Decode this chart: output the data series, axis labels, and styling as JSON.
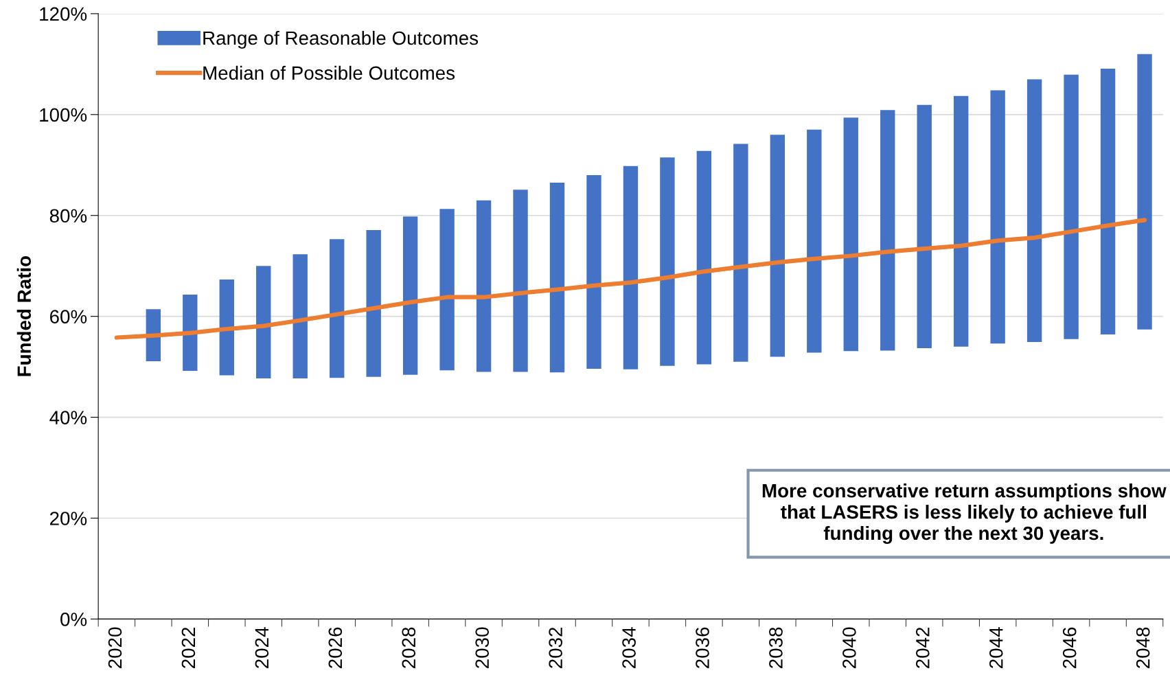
{
  "chart_data": {
    "type": "bar",
    "ylabel": "Funded Ratio",
    "categories": [
      "2020",
      null,
      "2022",
      null,
      "2024",
      null,
      "2026",
      null,
      "2028",
      null,
      "2030",
      null,
      "2032",
      null,
      "2034",
      null,
      "2036",
      null,
      "2038",
      null,
      "2040",
      null,
      "2042",
      null,
      "2044",
      null,
      "2046",
      null,
      "2048"
    ],
    "series": [
      {
        "name": "Range of Reasonable Outcomes",
        "type": "bar",
        "color": "#4472c4",
        "base": [
          null,
          51.1,
          49.2,
          48.3,
          47.7,
          47.7,
          47.8,
          48.0,
          48.4,
          49.3,
          49.0,
          49.0,
          48.9,
          49.6,
          49.5,
          50.2,
          50.5,
          51.0,
          52.0,
          52.8,
          53.1,
          53.2,
          53.7,
          54.0,
          54.6,
          54.9,
          55.5,
          56.4,
          57.4
        ],
        "values": [
          null,
          10.3,
          15.1,
          19.0,
          22.3,
          24.6,
          27.5,
          29.1,
          31.4,
          32.0,
          34.0,
          36.1,
          37.6,
          38.4,
          40.3,
          41.3,
          42.3,
          43.2,
          44.0,
          44.2,
          46.3,
          47.7,
          48.2,
          49.7,
          50.2,
          52.1,
          52.4,
          52.7,
          54.6
        ]
      },
      {
        "name": "Median of Possible Outcomes",
        "type": "line",
        "color": "#ed7d31",
        "values": [
          55.8,
          56.2,
          56.7,
          57.5,
          58.1,
          59.2,
          60.4,
          61.6,
          62.8,
          63.8,
          63.8,
          64.6,
          65.3,
          66.1,
          66.7,
          67.7,
          68.9,
          69.8,
          70.7,
          71.4,
          72.0,
          72.8,
          73.4,
          74.0,
          75.0,
          75.6,
          76.8,
          78.0,
          79.1
        ]
      }
    ],
    "ylim": [
      0,
      120
    ],
    "yticks": [
      {
        "value": 0,
        "label": "0%"
      },
      {
        "value": 20,
        "label": "20%"
      },
      {
        "value": 40,
        "label": "40%"
      },
      {
        "value": 60,
        "label": "60%"
      },
      {
        "value": 80,
        "label": "80%"
      },
      {
        "value": 100,
        "label": "100%"
      },
      {
        "value": 120,
        "label": "120%"
      }
    ],
    "grid": "y",
    "legend": "top left",
    "annotations": [
      "More conservative return assumptions show that LASERS is less likely to achieve full funding over the next 30 years."
    ]
  }
}
